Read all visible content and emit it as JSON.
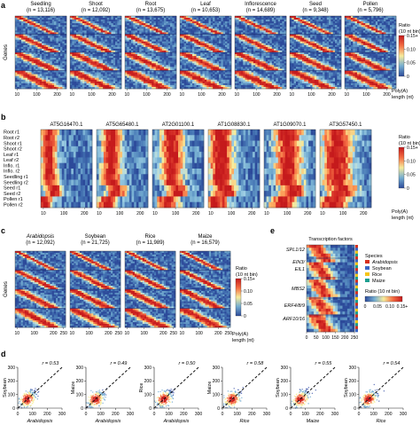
{
  "panel_labels": [
    "a",
    "b",
    "c",
    "d",
    "e"
  ],
  "panel_a": {
    "heatmaps": [
      {
        "name": "Seedling",
        "n": "(n = 13,116)"
      },
      {
        "name": "Shoot",
        "n": "(n = 12,092)"
      },
      {
        "name": "Root",
        "n": "(n = 13,675)"
      },
      {
        "name": "Leaf",
        "n": "(n = 10,653)"
      },
      {
        "name": "Inflorescence",
        "n": "(n = 14,689)"
      },
      {
        "name": "Seed",
        "n": "(n = 9,348)"
      },
      {
        "name": "Pollen",
        "n": "(n = 5,796)"
      }
    ],
    "ylabel": "Genes",
    "xticks": [
      "10",
      "100",
      "200"
    ],
    "xlabel_line1": "Poly(A)",
    "xlabel_line2": "length (nt)",
    "colorbar": {
      "title_line1": "Ratio",
      "title_line2": "(10 nt bin)",
      "ticks": [
        "0.15+",
        "0.10",
        "0.05",
        "0"
      ]
    }
  },
  "panel_b": {
    "genes": [
      "AT5G16470.1",
      "AT5G65480.1",
      "AT2G01100.1",
      "AT1G08830.1",
      "AT1G09070.1",
      "AT3G57450.1"
    ],
    "rows": [
      "Root r1",
      "Root r2",
      "Shoot r1",
      "Shoot r2",
      "Leaf r1",
      "Leaf r2",
      "Inflo. r1",
      "Inflo. r2",
      "Seedling r1",
      "Seedling r2",
      "Seed r1",
      "Seed r2",
      "Pollen r1",
      "Pollen r2"
    ],
    "xticks": [
      "10",
      "100",
      "200"
    ],
    "xlabel_line1": "Poly(A)",
    "xlabel_line2": "length (nt)",
    "colorbar": {
      "title_line1": "Ratio",
      "title_line2": "(10 nt bin)",
      "ticks": [
        "0.15+",
        "0.10",
        "0.05",
        "0"
      ]
    }
  },
  "panel_c": {
    "heatmaps": [
      {
        "name": "Arabidopsis",
        "n": "(n = 12,092)"
      },
      {
        "name": "Soybean",
        "n": "(n = 21,725)"
      },
      {
        "name": "Rice",
        "n": "(n = 11,989)"
      },
      {
        "name": "Maize",
        "n": "(n = 16,579)"
      }
    ],
    "ylabel": "Genes",
    "xticks": [
      "10",
      "100",
      "200",
      "250"
    ],
    "xlabel_line1": "Poly(A)",
    "xlabel_line2": "length (nt)",
    "colorbar": {
      "title_line1": "Ratio",
      "title_line2": "(10 nt bin)",
      "ticks": [
        "0.15+",
        "0.10",
        "0.05",
        "0"
      ]
    }
  },
  "panel_e": {
    "title": "Transcription factors",
    "groups": [
      "SPL1/12",
      "EIN3/",
      "EIL1",
      "MBS2",
      "ERF4/8/9",
      "ARF10/16"
    ],
    "xticks": [
      "0",
      "50",
      "100",
      "150",
      "200",
      "250"
    ],
    "legend_title": "Species",
    "species": [
      {
        "name": "Arabidopsis",
        "color": "#d7301f"
      },
      {
        "name": "Soybean",
        "color": "#3a66c4"
      },
      {
        "name": "Rice",
        "color": "#f5c518"
      },
      {
        "name": "Maize",
        "color": "#1a9e8f"
      }
    ],
    "colorbar": {
      "title_line1": "Ratio (10 nt bin)",
      "ticks": [
        "0.15+",
        "0.10",
        "0.05",
        "0"
      ]
    }
  },
  "colors": {
    "low": "#2c4a9a",
    "mid": "#f7ec9c",
    "high": "#c51a1c"
  },
  "chart_data": [
    {
      "type": "scatter",
      "panel": "d",
      "xlabel": "Arabidopsis",
      "ylabel": "Soybean",
      "r_label": "r = 0.53",
      "xlim": [
        0,
        300
      ],
      "ylim": [
        0,
        300
      ],
      "xticks": [
        "0",
        "100",
        "200",
        "300"
      ],
      "yticks": [
        "0",
        "100",
        "200",
        "300"
      ]
    },
    {
      "type": "scatter",
      "panel": "d",
      "xlabel": "Arabidopsis",
      "ylabel": "Maize",
      "r_label": "r = 0.49",
      "xlim": [
        0,
        300
      ],
      "ylim": [
        0,
        300
      ],
      "xticks": [
        "0",
        "100",
        "200",
        "300"
      ],
      "yticks": [
        "0",
        "100",
        "200",
        "300"
      ]
    },
    {
      "type": "scatter",
      "panel": "d",
      "xlabel": "Arabidopsis",
      "ylabel": "Rice",
      "r_label": "r = 0.50",
      "xlim": [
        0,
        300
      ],
      "ylim": [
        0,
        300
      ],
      "xticks": [
        "0",
        "100",
        "200",
        "300"
      ],
      "yticks": [
        "0",
        "100",
        "200",
        "300"
      ]
    },
    {
      "type": "scatter",
      "panel": "d",
      "xlabel": "Rice",
      "ylabel": "Maize",
      "r_label": "r = 0.58",
      "xlim": [
        0,
        300
      ],
      "ylim": [
        0,
        300
      ],
      "xticks": [
        "0",
        "100",
        "200",
        "300"
      ],
      "yticks": [
        "0",
        "100",
        "200",
        "300"
      ]
    },
    {
      "type": "scatter",
      "panel": "d",
      "xlabel": "Maize",
      "ylabel": "Soybean",
      "r_label": "r = 0.55",
      "xlim": [
        0,
        300
      ],
      "ylim": [
        0,
        300
      ],
      "xticks": [
        "0",
        "100",
        "200",
        "300"
      ],
      "yticks": [
        "0",
        "100",
        "200",
        "300"
      ]
    },
    {
      "type": "scatter",
      "panel": "d",
      "xlabel": "Rice",
      "ylabel": "Soybean",
      "r_label": "r = 0.54",
      "xlim": [
        0,
        300
      ],
      "ylim": [
        0,
        300
      ],
      "xticks": [
        "0",
        "100",
        "200",
        "300"
      ],
      "yticks": [
        "0",
        "100",
        "200",
        "300"
      ]
    }
  ]
}
